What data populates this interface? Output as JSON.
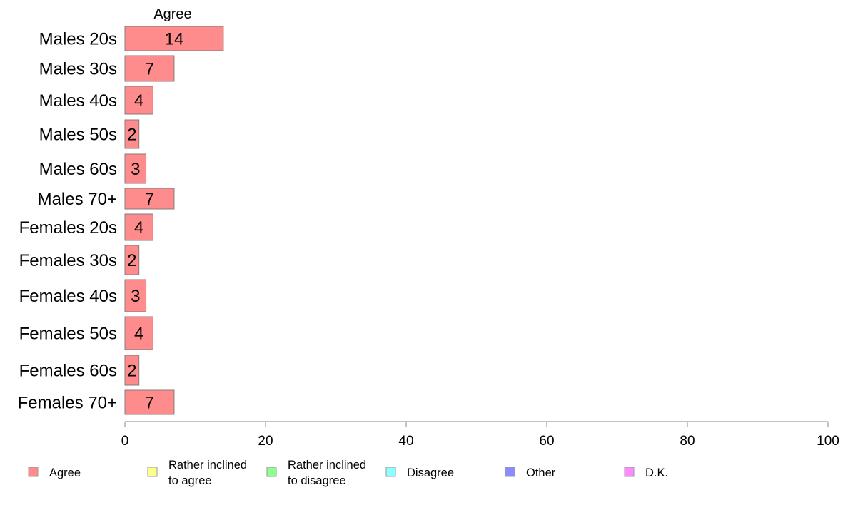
{
  "chart_data": {
    "type": "bar",
    "orientation": "horizontal",
    "stacked": true,
    "categories": [
      "Males 20s",
      "Males 30s",
      "Males 40s",
      "Males 50s",
      "Males 60s",
      "Males 70+",
      "Females 20s",
      "Females 30s",
      "Females 40s",
      "Females 50s",
      "Females 60s",
      "Females 70+"
    ],
    "series": [
      {
        "name": "Agree",
        "color": "#ff8c8c",
        "values": [
          14,
          7,
          4,
          2,
          3,
          7,
          4,
          2,
          3,
          4,
          2,
          7
        ]
      }
    ],
    "series_title": "Agree",
    "xlim": [
      0,
      100
    ],
    "xticks": [
      "0",
      "20",
      "40",
      "60",
      "80",
      "100"
    ],
    "legend": {
      "placement": "bottom",
      "entries": [
        {
          "lines": [
            "Agree"
          ],
          "color": "#ff8c8c"
        },
        {
          "lines": [
            "Rather inclined",
            "to agree"
          ],
          "color": "#ffff8c"
        },
        {
          "lines": [
            "Rather inclined",
            "to disagree"
          ],
          "color": "#8cff8c"
        },
        {
          "lines": [
            "Disagree"
          ],
          "color": "#8cffff"
        },
        {
          "lines": [
            "Other"
          ],
          "color": "#8c8cff"
        },
        {
          "lines": [
            "D.K."
          ],
          "color": "#ff8cff"
        }
      ]
    },
    "grid": false
  }
}
